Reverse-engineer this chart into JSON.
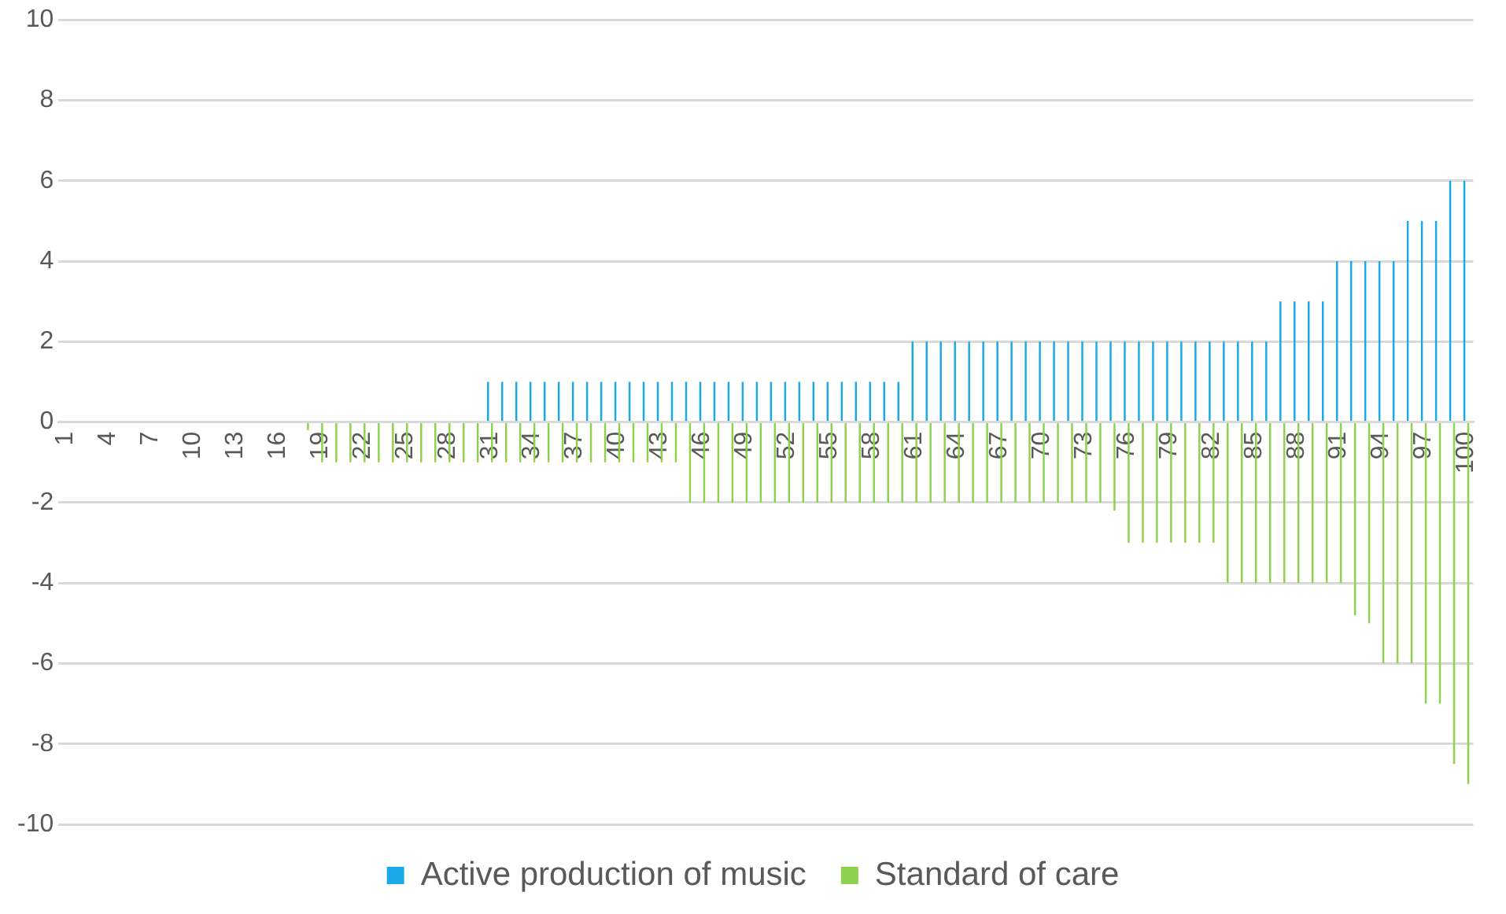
{
  "chart_data": {
    "type": "bar",
    "categories": [
      "1",
      null,
      null,
      "4",
      null,
      null,
      "7",
      null,
      null,
      "10",
      null,
      null,
      "13",
      null,
      null,
      "16",
      null,
      null,
      "19",
      null,
      null,
      "22",
      null,
      null,
      "25",
      null,
      null,
      "28",
      null,
      null,
      "31",
      null,
      null,
      "34",
      null,
      null,
      "37",
      null,
      null,
      "40",
      null,
      null,
      "43",
      null,
      null,
      "46",
      null,
      null,
      "49",
      null,
      null,
      "52",
      null,
      null,
      "55",
      null,
      null,
      "58",
      null,
      null,
      "61",
      null,
      null,
      "64",
      null,
      null,
      "67",
      null,
      null,
      "70",
      null,
      null,
      "73",
      null,
      null,
      "76",
      null,
      null,
      "79",
      null,
      null,
      "82",
      null,
      null,
      "85",
      null,
      null,
      "88",
      null,
      null,
      "91",
      null,
      null,
      "94",
      null,
      null,
      "97",
      null,
      null,
      "100"
    ],
    "series": [
      {
        "name": "Active production of music",
        "color": "#1aa9e8",
        "values": [
          0,
          0,
          0,
          0,
          0,
          0,
          0,
          0,
          0,
          0,
          0,
          0,
          0,
          0,
          0,
          0,
          0,
          0,
          0,
          0,
          0,
          0,
          0,
          0,
          0,
          0,
          0,
          0,
          0,
          0,
          1,
          1,
          1,
          1,
          1,
          1,
          1,
          1,
          1,
          1,
          1,
          1,
          1,
          1,
          1,
          1,
          1,
          1,
          1,
          1,
          1,
          1,
          1,
          1,
          1,
          1,
          1,
          1,
          1,
          1,
          2,
          2,
          2,
          2,
          2,
          2,
          2,
          2,
          2,
          2,
          2,
          2,
          2,
          2,
          2,
          2,
          2,
          2,
          2,
          2,
          2,
          2,
          2,
          2,
          2,
          2,
          3,
          3,
          3,
          3,
          4,
          4,
          4,
          4,
          4,
          5,
          5,
          5,
          6,
          6
        ]
      },
      {
        "name": "Standard of care",
        "color": "#8fd14f",
        "values": [
          0,
          0,
          0,
          0,
          0,
          0,
          0,
          0,
          0,
          0,
          0,
          0,
          0,
          0,
          0,
          0,
          0,
          -0.2,
          -1,
          -1,
          -1,
          -1,
          -1,
          -1,
          -1,
          -1,
          -1,
          -1,
          -1,
          -1,
          -1,
          -1,
          -1,
          -1,
          -1,
          -1,
          -1,
          -1,
          -1,
          -1,
          -1,
          -1,
          -1,
          -1,
          -2,
          -2,
          -2,
          -2,
          -2,
          -2,
          -2,
          -2,
          -2,
          -2,
          -2,
          -2,
          -2,
          -2,
          -2,
          -2,
          -2,
          -2,
          -2,
          -2,
          -2,
          -2,
          -2,
          -2,
          -2,
          -2,
          -2,
          -2,
          -2,
          -2,
          -2.2,
          -3,
          -3,
          -3,
          -3,
          -3,
          -3,
          -3,
          -4,
          -4,
          -4,
          -4,
          -4,
          -4,
          -4,
          -4,
          -4,
          -4.8,
          -5,
          -6,
          -6,
          -6,
          -7,
          -7,
          -8.5,
          -9
        ]
      }
    ],
    "ylim": [
      -10,
      10
    ],
    "yticks": [
      -10,
      -8,
      -6,
      -4,
      -2,
      0,
      2,
      4,
      6,
      8,
      10
    ],
    "grid": "y",
    "legend": "bottom"
  }
}
